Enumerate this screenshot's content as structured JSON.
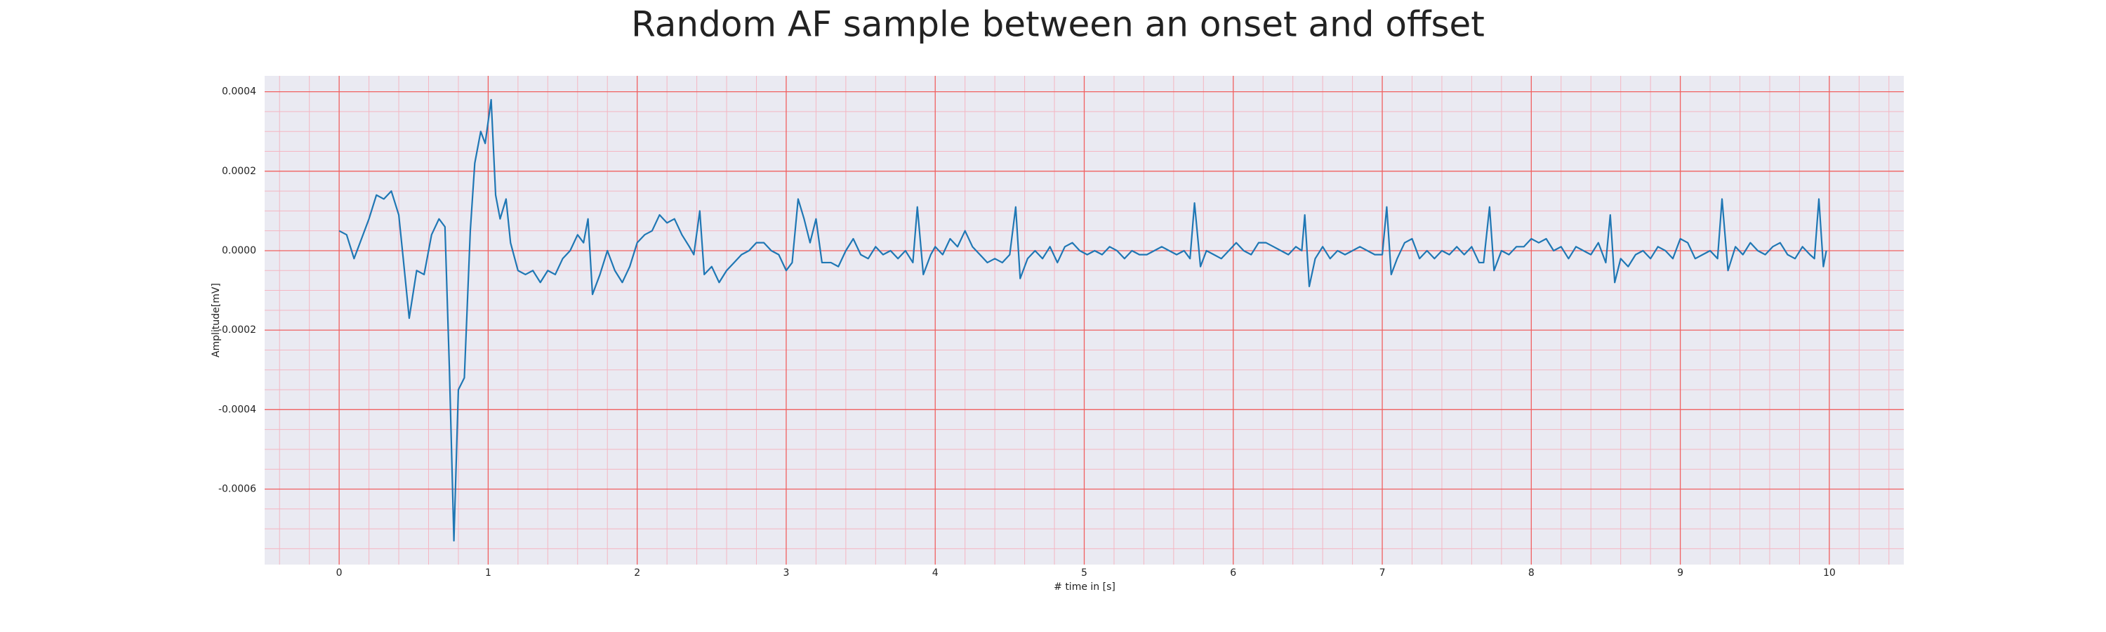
{
  "chart_data": {
    "type": "line",
    "title": "Random AF sample between an onset and offset",
    "xlabel": "# time in [s]",
    "ylabel": "Amplitude[mV]",
    "color": "#1f77b4",
    "grid": true,
    "minor_grid": true,
    "xlim": [
      -0.5,
      10.5
    ],
    "xticks": [
      0,
      1,
      2,
      3,
      4,
      5,
      6,
      7,
      8,
      9,
      10
    ],
    "ylim": [
      -0.00079,
      0.00044
    ],
    "yticks": [
      -0.0006,
      -0.0004,
      -0.0002,
      {
        "value": 0,
        "label": "0.0000"
      },
      0.0002,
      0.0004
    ],
    "x": [
      0,
      0.05,
      0.1,
      0.15,
      0.2,
      0.25,
      0.3,
      0.35,
      0.4,
      0.43,
      0.47,
      0.52,
      0.57,
      0.62,
      0.67,
      0.71,
      0.74,
      0.77,
      0.8,
      0.84,
      0.88,
      0.91,
      0.95,
      0.98,
      1.02,
      1.05,
      1.08,
      1.12,
      1.15,
      1.2,
      1.25,
      1.3,
      1.35,
      1.4,
      1.45,
      1.5,
      1.55,
      1.6,
      1.64,
      1.67,
      1.7,
      1.75,
      1.8,
      1.85,
      1.9,
      1.95,
      2.0,
      2.05,
      2.1,
      2.15,
      2.2,
      2.25,
      2.3,
      2.35,
      2.38,
      2.42,
      2.45,
      2.5,
      2.55,
      2.6,
      2.65,
      2.7,
      2.75,
      2.8,
      2.85,
      2.9,
      2.95,
      3.0,
      3.04,
      3.08,
      3.12,
      3.16,
      3.2,
      3.24,
      3.3,
      3.35,
      3.4,
      3.45,
      3.5,
      3.55,
      3.6,
      3.65,
      3.7,
      3.75,
      3.8,
      3.85,
      3.88,
      3.92,
      3.97,
      4.0,
      4.05,
      4.1,
      4.15,
      4.2,
      4.25,
      4.3,
      4.35,
      4.4,
      4.45,
      4.5,
      4.54,
      4.57,
      4.62,
      4.67,
      4.72,
      4.77,
      4.82,
      4.87,
      4.92,
      4.97,
      5.02,
      5.07,
      5.12,
      5.17,
      5.22,
      5.27,
      5.32,
      5.37,
      5.42,
      5.47,
      5.52,
      5.57,
      5.62,
      5.67,
      5.71,
      5.74,
      5.78,
      5.82,
      5.87,
      5.92,
      5.97,
      6.02,
      6.07,
      6.12,
      6.17,
      6.22,
      6.27,
      6.32,
      6.37,
      6.42,
      6.46,
      6.48,
      6.51,
      6.55,
      6.6,
      6.65,
      6.7,
      6.75,
      6.8,
      6.85,
      6.9,
      6.95,
      7.0,
      7.03,
      7.06,
      7.1,
      7.15,
      7.2,
      7.25,
      7.3,
      7.35,
      7.4,
      7.45,
      7.5,
      7.55,
      7.6,
      7.65,
      7.68,
      7.72,
      7.75,
      7.8,
      7.85,
      7.9,
      7.95,
      8.0,
      8.05,
      8.1,
      8.15,
      8.2,
      8.25,
      8.3,
      8.35,
      8.4,
      8.45,
      8.5,
      8.53,
      8.56,
      8.6,
      8.65,
      8.7,
      8.75,
      8.8,
      8.85,
      8.9,
      8.95,
      9.0,
      9.05,
      9.1,
      9.15,
      9.2,
      9.25,
      9.28,
      9.32,
      9.37,
      9.42,
      9.47,
      9.52,
      9.57,
      9.62,
      9.67,
      9.72,
      9.77,
      9.82,
      9.87,
      9.9,
      9.93,
      9.96,
      9.98
    ],
    "values": [
      5e-05,
      4e-05,
      -2e-05,
      3e-05,
      8e-05,
      0.00014,
      0.00013,
      0.00015,
      9e-05,
      -2e-05,
      -0.00017,
      -5e-05,
      -6e-05,
      4e-05,
      8e-05,
      6e-05,
      -0.0003,
      -0.00073,
      -0.00035,
      -0.00032,
      5e-05,
      0.00022,
      0.0003,
      0.00027,
      0.00038,
      0.00014,
      8e-05,
      0.00013,
      2e-05,
      -5e-05,
      -6e-05,
      -5e-05,
      -8e-05,
      -5e-05,
      -6e-05,
      -2e-05,
      0,
      4e-05,
      2e-05,
      8e-05,
      -0.00011,
      -6e-05,
      0,
      -5e-05,
      -8e-05,
      -4e-05,
      2e-05,
      4e-05,
      5e-05,
      9e-05,
      7e-05,
      8e-05,
      4e-05,
      1e-05,
      -1e-05,
      0.0001,
      -6e-05,
      -4e-05,
      -8e-05,
      -5e-05,
      -3e-05,
      -1e-05,
      0,
      2e-05,
      2e-05,
      0,
      -1e-05,
      -5e-05,
      -3e-05,
      0.00013,
      8e-05,
      2e-05,
      8e-05,
      -3e-05,
      -3e-05,
      -4e-05,
      0,
      3e-05,
      -1e-05,
      -2e-05,
      1e-05,
      -1e-05,
      0,
      -2e-05,
      0,
      -3e-05,
      0.00011,
      -6e-05,
      -1e-05,
      1e-05,
      -1e-05,
      3e-05,
      1e-05,
      5e-05,
      1e-05,
      -1e-05,
      -3e-05,
      -2e-05,
      -3e-05,
      -1e-05,
      0.00011,
      -7e-05,
      -2e-05,
      0,
      -2e-05,
      1e-05,
      -3e-05,
      1e-05,
      2e-05,
      0,
      -1e-05,
      0,
      -1e-05,
      1e-05,
      0,
      -2e-05,
      0,
      -1e-05,
      -1e-05,
      0,
      1e-05,
      0,
      -1e-05,
      0,
      -2e-05,
      0.00012,
      -4e-05,
      0,
      -1e-05,
      -2e-05,
      0,
      2e-05,
      0,
      -1e-05,
      2e-05,
      2e-05,
      1e-05,
      0,
      -1e-05,
      1e-05,
      0,
      9e-05,
      -9e-05,
      -2e-05,
      1e-05,
      -2e-05,
      0,
      -1e-05,
      0,
      1e-05,
      0,
      -1e-05,
      -1e-05,
      0.00011,
      -6e-05,
      -2e-05,
      2e-05,
      3e-05,
      -2e-05,
      0,
      -2e-05,
      0,
      -1e-05,
      1e-05,
      -1e-05,
      1e-05,
      -3e-05,
      -3e-05,
      0.00011,
      -5e-05,
      0,
      -1e-05,
      1e-05,
      1e-05,
      3e-05,
      2e-05,
      3e-05,
      0,
      1e-05,
      -2e-05,
      1e-05,
      0,
      -1e-05,
      2e-05,
      -3e-05,
      9e-05,
      -8e-05,
      -2e-05,
      -4e-05,
      -1e-05,
      0,
      -2e-05,
      1e-05,
      0,
      -2e-05,
      3e-05,
      2e-05,
      -2e-05,
      -1e-05,
      0,
      -2e-05,
      0.00013,
      -5e-05,
      1e-05,
      -1e-05,
      2e-05,
      0,
      -1e-05,
      1e-05,
      2e-05,
      -1e-05,
      -2e-05,
      1e-05,
      -1e-05,
      -2e-05,
      0.00013,
      -4e-05,
      0
    ]
  }
}
